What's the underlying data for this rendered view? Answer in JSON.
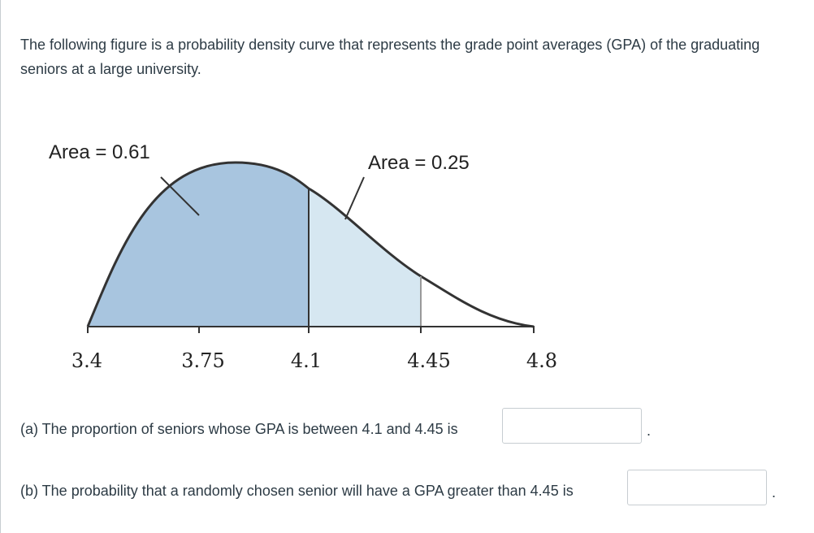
{
  "question": {
    "intro": "The following figure is a probability density curve that represents the grade point averages (GPA) of the graduating seniors at a large university.",
    "part_a": "(a) The proportion of seniors whose GPA is between 4.1 and 4.45 is",
    "part_b": "(b) The probability that a randomly chosen senior will have a GPA greater than 4.45 is",
    "answer_a_value": "",
    "answer_b_value": "",
    "period": "."
  },
  "chart_data": {
    "type": "area",
    "x_ticks": [
      "3.4",
      "3.75",
      "4.1",
      "4.45",
      "4.8"
    ],
    "xlim": [
      3.4,
      4.8
    ],
    "regions": [
      {
        "label": "Area = 0.61",
        "from": 3.4,
        "to": 4.1,
        "area": 0.61,
        "color": "#a8c5df"
      },
      {
        "label": "Area = 0.25",
        "from": 4.1,
        "to": 4.45,
        "area": 0.25,
        "color": "#d6e7f1"
      },
      {
        "label": "",
        "from": 4.45,
        "to": 4.8,
        "area": null,
        "color": "#ffffff"
      }
    ]
  }
}
